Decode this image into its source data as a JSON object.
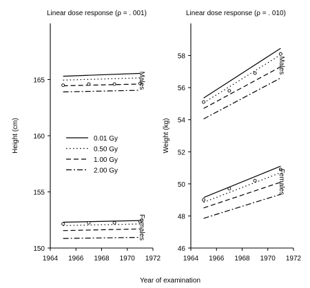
{
  "shared": {
    "xlabel": "Year of examination"
  },
  "legend": [
    {
      "label": "0.01 Gy",
      "dash": ""
    },
    {
      "label": "0.50 Gy",
      "dash": "1.5,3.5"
    },
    {
      "label": "1.00 Gy",
      "dash": "7,4"
    },
    {
      "label": "2.00 Gy",
      "dash": "8,3,2,3"
    }
  ],
  "chart_data": [
    {
      "type": "line",
      "title": "Linear dose response (ρ = . 001)",
      "xlabel": "Year of examination",
      "ylabel": "Height (cm)",
      "xlim": [
        1964,
        1972
      ],
      "ylim": [
        150,
        170
      ],
      "xticks": [
        1964,
        1966,
        1968,
        1970,
        1972
      ],
      "yticks": [
        150,
        155,
        160,
        165
      ],
      "groups": [
        {
          "label": "Males",
          "series": [
            {
              "name": "0.01 Gy",
              "x": [
                1965,
                1971
              ],
              "y": [
                165.3,
                165.55
              ]
            },
            {
              "name": "0.50 Gy",
              "x": [
                1965,
                1971
              ],
              "y": [
                164.95,
                165.15
              ]
            },
            {
              "name": "1.00 Gy",
              "x": [
                1965,
                1971
              ],
              "y": [
                164.45,
                164.6
              ]
            },
            {
              "name": "2.00 Gy",
              "x": [
                1965,
                1971
              ],
              "y": [
                163.9,
                164.05
              ]
            }
          ],
          "observed": {
            "x": [
              1965,
              1967,
              1969,
              1971
            ],
            "y": [
              164.5,
              164.6,
              164.6,
              164.65
            ]
          }
        },
        {
          "label": "Females",
          "series": [
            {
              "name": "0.01 Gy",
              "x": [
                1965,
                1971
              ],
              "y": [
                152.3,
                152.45
              ]
            },
            {
              "name": "0.50 Gy",
              "x": [
                1965,
                1971
              ],
              "y": [
                152.0,
                152.15
              ]
            },
            {
              "name": "1.00 Gy",
              "x": [
                1965,
                1971
              ],
              "y": [
                151.55,
                151.7
              ]
            },
            {
              "name": "2.00 Gy",
              "x": [
                1965,
                1971
              ],
              "y": [
                150.85,
                150.95
              ]
            }
          ],
          "observed": {
            "x": [
              1965,
              1967,
              1969,
              1971
            ],
            "y": [
              152.15,
              152.25,
              152.25,
              152.35
            ]
          }
        }
      ]
    },
    {
      "type": "line",
      "title": "Linear dose response (ρ = . 010)",
      "xlabel": "Year of examination",
      "ylabel": "Weight (kg)",
      "xlim": [
        1964,
        1972
      ],
      "ylim": [
        46,
        60
      ],
      "xticks": [
        1964,
        1966,
        1968,
        1970,
        1972
      ],
      "yticks": [
        46,
        48,
        50,
        52,
        54,
        56,
        58
      ],
      "groups": [
        {
          "label": "Males",
          "series": [
            {
              "name": "0.01 Gy",
              "x": [
                1965,
                1971
              ],
              "y": [
                55.35,
                58.45
              ]
            },
            {
              "name": "0.50 Gy",
              "x": [
                1965,
                1971
              ],
              "y": [
                55.05,
                58.05
              ]
            },
            {
              "name": "1.00 Gy",
              "x": [
                1965,
                1971
              ],
              "y": [
                54.7,
                57.3
              ]
            },
            {
              "name": "2.00 Gy",
              "x": [
                1965,
                1971
              ],
              "y": [
                54.05,
                56.6
              ]
            }
          ],
          "observed": {
            "x": [
              1965,
              1967,
              1969,
              1971
            ],
            "y": [
              55.1,
              55.8,
              56.9,
              58.1
            ]
          }
        },
        {
          "label": "Females",
          "series": [
            {
              "name": "0.01 Gy",
              "x": [
                1965,
                1971
              ],
              "y": [
                49.15,
                51.1
              ]
            },
            {
              "name": "0.50 Gy",
              "x": [
                1965,
                1971
              ],
              "y": [
                48.85,
                50.7
              ]
            },
            {
              "name": "1.00 Gy",
              "x": [
                1965,
                1971
              ],
              "y": [
                48.5,
                50.1
              ]
            },
            {
              "name": "2.00 Gy",
              "x": [
                1965,
                1971
              ],
              "y": [
                47.85,
                49.35
              ]
            }
          ],
          "observed": {
            "x": [
              1965,
              1967,
              1969,
              1971
            ],
            "y": [
              49.0,
              49.7,
              50.2,
              50.9
            ]
          }
        }
      ]
    }
  ]
}
